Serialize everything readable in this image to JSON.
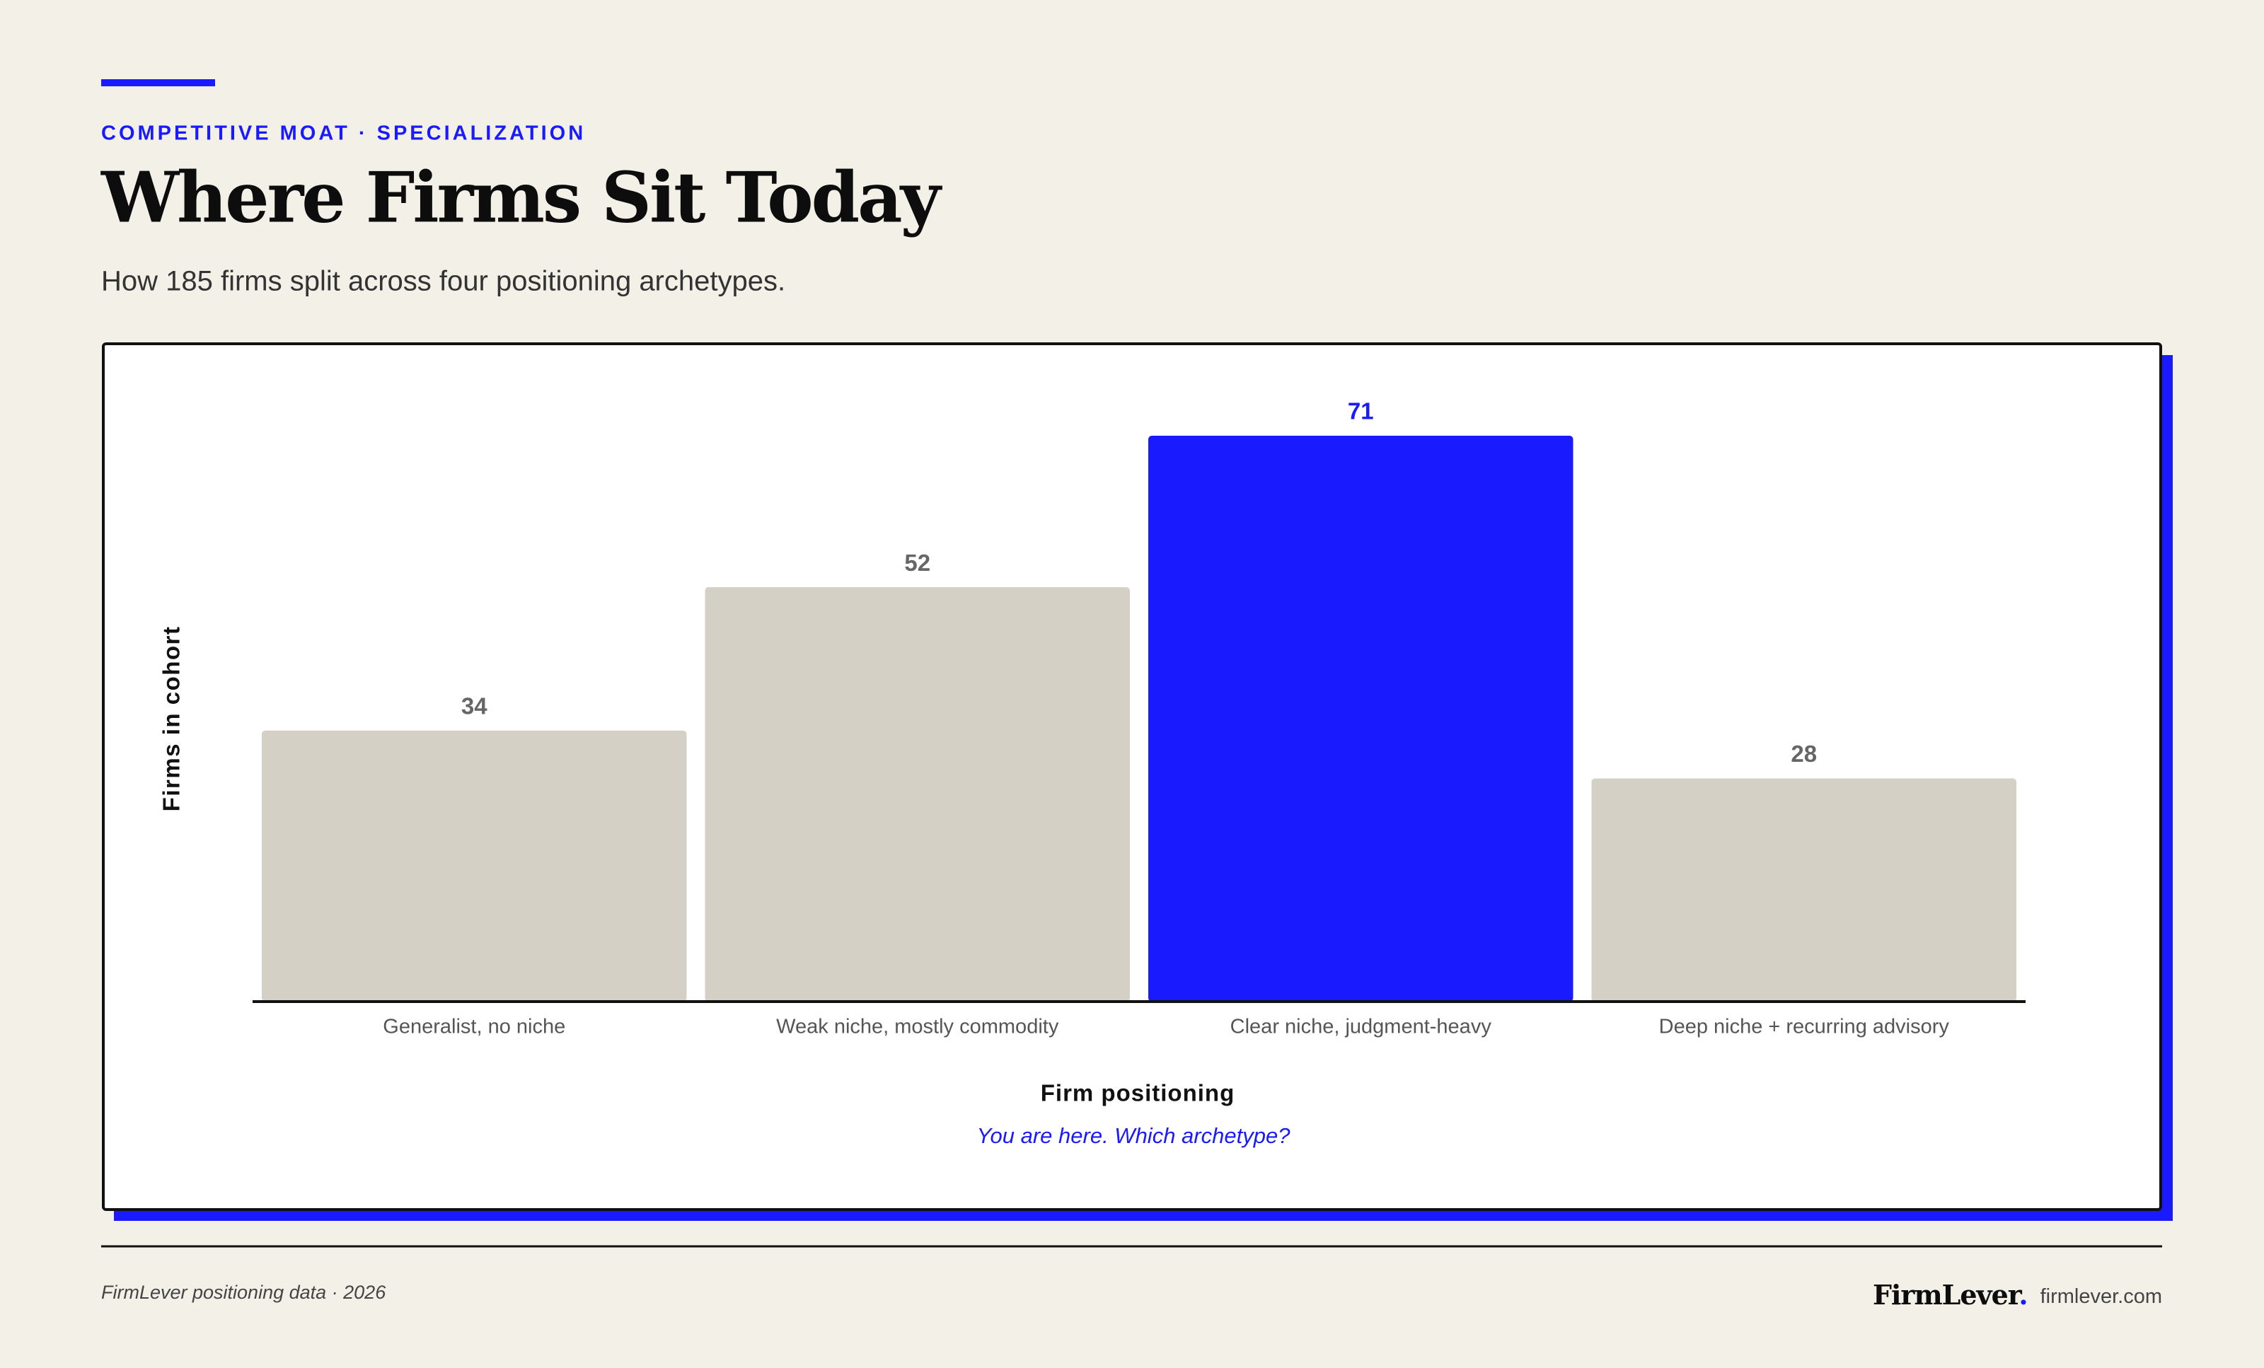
{
  "chart_data": {
    "type": "bar",
    "eyebrow": "COMPETITIVE MOAT · SPECIALIZATION",
    "title": "Where Firms Sit Today",
    "subtitle": "How 185 firms split across four positioning archetypes.",
    "categories": [
      "Generalist, no niche",
      "Weak niche, mostly commodity",
      "Clear niche, judgment-heavy",
      "Deep niche + recurring advisory"
    ],
    "values": [
      34,
      52,
      71,
      28
    ],
    "colors": [
      "#d4d0c5",
      "#d4d0c5",
      "#1a1aff",
      "#d4d0c5"
    ],
    "label_colors": [
      "#666666",
      "#666666",
      "#1a1aff",
      "#666666"
    ],
    "xlabel": "Firm positioning",
    "ylabel": "Firms in cohort",
    "annotation": "You are here. Which archetype?"
  },
  "footer": {
    "source": "FirmLever positioning data · 2026",
    "brand": "FirmLever",
    "brand_dot": ".",
    "site": "firmlever.com"
  }
}
